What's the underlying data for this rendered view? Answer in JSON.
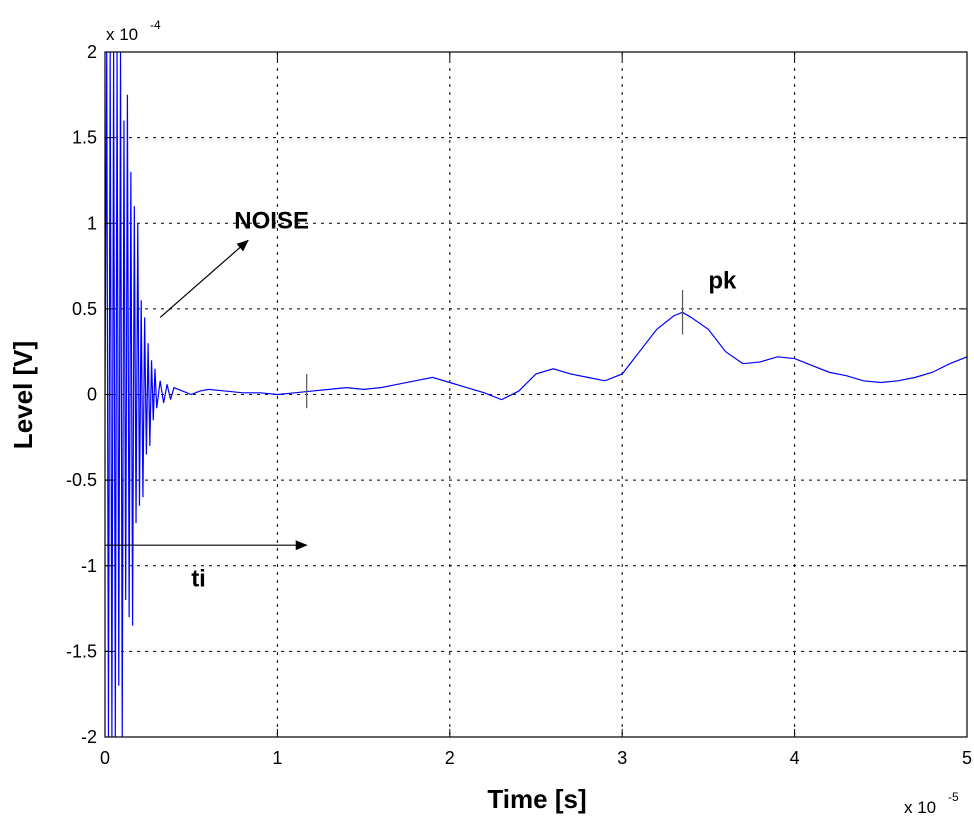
{
  "chart_data": {
    "type": "line",
    "title": "",
    "xlabel": "Time [s]",
    "ylabel": "Level [V]",
    "x_scale_note": {
      "base": "x 10",
      "exponent": "-5"
    },
    "y_scale_note": {
      "base": "x 10",
      "exponent": "-4"
    },
    "xlim": [
      0,
      5
    ],
    "ylim": [
      -2,
      2
    ],
    "x_ticks": [
      {
        "value": 0,
        "label": "0"
      },
      {
        "value": 1,
        "label": "1"
      },
      {
        "value": 2,
        "label": "2"
      },
      {
        "value": 3,
        "label": "3"
      },
      {
        "value": 4,
        "label": "4"
      },
      {
        "value": 5,
        "label": "5"
      }
    ],
    "y_ticks": [
      {
        "value": 2,
        "label": "2"
      },
      {
        "value": 1.5,
        "label": "1.5"
      },
      {
        "value": 1,
        "label": "1"
      },
      {
        "value": 0.5,
        "label": "0.5"
      },
      {
        "value": 0,
        "label": "0"
      },
      {
        "value": -0.5,
        "label": "-0.5"
      },
      {
        "value": -1,
        "label": "-1"
      },
      {
        "value": -1.5,
        "label": "-1.5"
      },
      {
        "value": -2,
        "label": "-2"
      }
    ],
    "grid": true,
    "grid_style": "dotted",
    "series": [
      {
        "color": "#0000ff",
        "points": [
          [
            0.0,
            0.0
          ],
          [
            0.01,
            2.0
          ],
          [
            0.02,
            -2.0
          ],
          [
            0.03,
            2.0
          ],
          [
            0.04,
            -2.0
          ],
          [
            0.05,
            2.0
          ],
          [
            0.06,
            -2.0
          ],
          [
            0.07,
            2.0
          ],
          [
            0.08,
            -1.7
          ],
          [
            0.09,
            2.0
          ],
          [
            0.1,
            -2.0
          ],
          [
            0.11,
            1.6
          ],
          [
            0.12,
            -1.2
          ],
          [
            0.13,
            1.75
          ],
          [
            0.14,
            -1.3
          ],
          [
            0.15,
            1.3
          ],
          [
            0.16,
            -1.35
          ],
          [
            0.17,
            1.1
          ],
          [
            0.18,
            -0.75
          ],
          [
            0.19,
            1.0
          ],
          [
            0.2,
            -0.65
          ],
          [
            0.21,
            0.55
          ],
          [
            0.22,
            -0.6
          ],
          [
            0.23,
            0.45
          ],
          [
            0.24,
            -0.35
          ],
          [
            0.25,
            0.3
          ],
          [
            0.26,
            -0.3
          ],
          [
            0.27,
            0.2
          ],
          [
            0.28,
            -0.15
          ],
          [
            0.29,
            0.15
          ],
          [
            0.3,
            -0.08
          ],
          [
            0.32,
            0.08
          ],
          [
            0.34,
            -0.05
          ],
          [
            0.36,
            0.06
          ],
          [
            0.38,
            -0.03
          ],
          [
            0.4,
            0.04
          ],
          [
            0.45,
            0.02
          ],
          [
            0.5,
            0.0
          ],
          [
            0.55,
            0.02
          ],
          [
            0.6,
            0.03
          ],
          [
            0.7,
            0.02
          ],
          [
            0.8,
            0.01
          ],
          [
            0.9,
            0.01
          ],
          [
            1.0,
            0.0
          ],
          [
            1.1,
            0.01
          ],
          [
            1.2,
            0.02
          ],
          [
            1.3,
            0.03
          ],
          [
            1.4,
            0.04
          ],
          [
            1.5,
            0.03
          ],
          [
            1.6,
            0.04
          ],
          [
            1.7,
            0.06
          ],
          [
            1.8,
            0.08
          ],
          [
            1.9,
            0.1
          ],
          [
            2.0,
            0.07
          ],
          [
            2.1,
            0.04
          ],
          [
            2.2,
            0.01
          ],
          [
            2.3,
            -0.03
          ],
          [
            2.4,
            0.02
          ],
          [
            2.5,
            0.12
          ],
          [
            2.6,
            0.15
          ],
          [
            2.7,
            0.12
          ],
          [
            2.8,
            0.1
          ],
          [
            2.9,
            0.08
          ],
          [
            3.0,
            0.12
          ],
          [
            3.1,
            0.25
          ],
          [
            3.2,
            0.38
          ],
          [
            3.3,
            0.46
          ],
          [
            3.35,
            0.48
          ],
          [
            3.4,
            0.45
          ],
          [
            3.5,
            0.38
          ],
          [
            3.6,
            0.25
          ],
          [
            3.7,
            0.18
          ],
          [
            3.8,
            0.19
          ],
          [
            3.9,
            0.22
          ],
          [
            4.0,
            0.21
          ],
          [
            4.1,
            0.17
          ],
          [
            4.2,
            0.13
          ],
          [
            4.3,
            0.11
          ],
          [
            4.4,
            0.08
          ],
          [
            4.5,
            0.07
          ],
          [
            4.6,
            0.08
          ],
          [
            4.7,
            0.1
          ],
          [
            4.8,
            0.13
          ],
          [
            4.9,
            0.18
          ],
          [
            5.0,
            0.22
          ]
        ]
      }
    ],
    "markers": [
      {
        "x": 1.17,
        "y": 0.02,
        "half_height": 0.1
      },
      {
        "x": 3.35,
        "y": 0.48,
        "half_height": 0.13
      }
    ],
    "annotations": [
      {
        "id": "noise",
        "text": "NOISE",
        "x": 0.75,
        "y": 0.97
      },
      {
        "id": "pk",
        "text": "pk",
        "x": 3.5,
        "y": 0.62
      },
      {
        "id": "ti",
        "text": "ti",
        "x": 0.5,
        "y": -1.12
      }
    ],
    "arrows": [
      {
        "id": "noise-arrow",
        "x1": 0.32,
        "y1": 0.45,
        "x2": 0.83,
        "y2": 0.9
      },
      {
        "id": "ti-arrow",
        "x1": 0.0,
        "y1": -0.88,
        "x2": 1.17,
        "y2": -0.88
      }
    ]
  }
}
